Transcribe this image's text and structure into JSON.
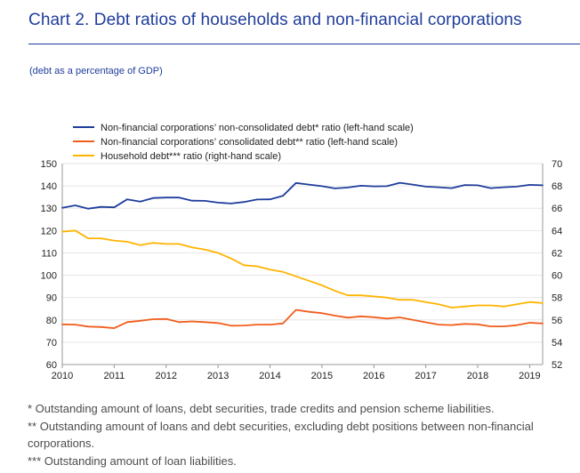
{
  "header": {
    "title": "Chart 2. Debt ratios of households and non-financial corporations",
    "subtitle": "(debt as a percentage of GDP)"
  },
  "notes": [
    "* Outstanding amount of loans, debt securities, trade credits and pension scheme liabilities.",
    "** Outstanding amount of loans and debt securities, excluding debt positions between non-financial corporations.",
    "*** Outstanding amount of loan liabilities."
  ],
  "chart_data": {
    "type": "line",
    "title": "Chart 2. Debt ratios of households and non-financial corporations",
    "subtitle": "(debt as a percentage of GDP)",
    "x_label": "",
    "x_tick_labels": [
      "2010",
      "2011",
      "2012",
      "2013",
      "2014",
      "2015",
      "2016",
      "2017",
      "2018",
      "2019"
    ],
    "xlim": [
      2010.0,
      2019.25
    ],
    "left_axis": {
      "ylim": [
        60,
        150
      ],
      "ticks": [
        60,
        70,
        80,
        90,
        100,
        110,
        120,
        130,
        140,
        150
      ]
    },
    "right_axis": {
      "ylim": [
        52,
        70
      ],
      "ticks": [
        52,
        54,
        56,
        58,
        60,
        62,
        64,
        66,
        68,
        70
      ]
    },
    "grid": "horizontal",
    "legend_position": "top-left",
    "x": [
      2010.0,
      2010.25,
      2010.5,
      2010.75,
      2011.0,
      2011.25,
      2011.5,
      2011.75,
      2012.0,
      2012.25,
      2012.5,
      2012.75,
      2013.0,
      2013.25,
      2013.5,
      2013.75,
      2014.0,
      2014.25,
      2014.5,
      2014.75,
      2015.0,
      2015.25,
      2015.5,
      2015.75,
      2016.0,
      2016.25,
      2016.5,
      2016.75,
      2017.0,
      2017.25,
      2017.5,
      2017.75,
      2018.0,
      2018.25,
      2018.5,
      2018.75,
      2019.0,
      2019.25
    ],
    "series": [
      {
        "name": "Non-financial corporations’ non-consolidated debt* ratio (left-hand scale)",
        "axis": "left",
        "color": "#1f3d9c",
        "values": [
          130.2,
          131.3,
          129.8,
          130.6,
          130.4,
          134.0,
          133.0,
          134.6,
          134.8,
          134.8,
          133.4,
          133.3,
          132.5,
          132.1,
          132.8,
          133.9,
          134.0,
          135.6,
          141.3,
          140.6,
          139.9,
          138.9,
          139.3,
          140.1,
          139.8,
          139.9,
          141.4,
          140.6,
          139.7,
          139.4,
          139.0,
          140.4,
          140.3,
          139.0,
          139.4,
          139.7,
          140.5,
          140.3
        ]
      },
      {
        "name": "Non-financial corporations’ consolidated debt** ratio (left-hand scale)",
        "axis": "left",
        "color": "#f25d1d",
        "values": [
          78.0,
          77.9,
          77.0,
          76.8,
          76.3,
          79.0,
          79.6,
          80.3,
          80.4,
          79.0,
          79.3,
          79.0,
          78.6,
          77.4,
          77.5,
          77.9,
          77.9,
          78.4,
          84.5,
          83.6,
          83.0,
          81.9,
          81.0,
          81.6,
          81.2,
          80.6,
          81.1,
          80.0,
          78.9,
          77.9,
          77.7,
          78.2,
          78.0,
          77.1,
          77.1,
          77.6,
          78.7,
          78.4
        ]
      },
      {
        "name": "Household debt*** ratio (right-hand scale)",
        "axis": "right",
        "color": "#ffb400",
        "values": [
          63.9,
          64.0,
          63.3,
          63.3,
          63.1,
          63.0,
          62.7,
          62.9,
          62.8,
          62.8,
          62.5,
          62.3,
          62.0,
          61.5,
          60.9,
          60.8,
          60.5,
          60.3,
          59.9,
          59.5,
          59.1,
          58.6,
          58.2,
          58.2,
          58.1,
          58.0,
          57.8,
          57.8,
          57.6,
          57.4,
          57.1,
          57.2,
          57.3,
          57.3,
          57.2,
          57.4,
          57.6,
          57.5
        ]
      }
    ]
  }
}
